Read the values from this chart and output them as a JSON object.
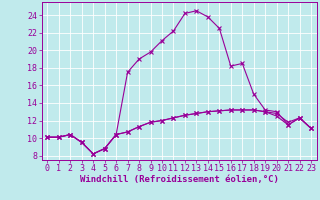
{
  "xlabel": "Windchill (Refroidissement éolien,°C)",
  "background_color": "#c0eaec",
  "line_color": "#990099",
  "xlim": [
    -0.5,
    23.5
  ],
  "ylim": [
    7.5,
    25.5
  ],
  "xticks": [
    0,
    1,
    2,
    3,
    4,
    5,
    6,
    7,
    8,
    9,
    10,
    11,
    12,
    13,
    14,
    15,
    16,
    17,
    18,
    19,
    20,
    21,
    22,
    23
  ],
  "yticks": [
    8,
    10,
    12,
    14,
    16,
    18,
    20,
    22,
    24
  ],
  "line1_x": [
    0,
    1,
    2,
    3,
    4,
    5,
    6,
    7,
    8,
    9,
    10,
    11,
    12,
    13,
    14,
    15,
    16,
    17,
    18,
    19,
    20,
    21,
    22,
    23
  ],
  "line1_y": [
    10.1,
    10.1,
    10.4,
    9.5,
    8.2,
    8.8,
    10.4,
    10.7,
    11.3,
    11.8,
    12.0,
    12.3,
    12.6,
    12.8,
    13.0,
    13.1,
    13.2,
    13.2,
    13.2,
    13.0,
    12.8,
    11.8,
    12.3,
    11.1
  ],
  "line2_x": [
    0,
    1,
    2,
    3,
    4,
    5,
    6,
    7,
    8,
    9,
    10,
    11,
    12,
    13,
    14,
    15,
    16,
    17,
    18,
    19,
    20,
    21,
    22,
    23
  ],
  "line2_y": [
    10.1,
    10.1,
    10.4,
    9.5,
    8.2,
    8.8,
    10.4,
    17.5,
    19.0,
    19.8,
    21.1,
    22.2,
    24.2,
    24.5,
    23.8,
    22.5,
    18.2,
    18.5,
    15.0,
    13.2,
    13.0,
    11.5,
    12.3,
    11.1
  ],
  "line3_x": [
    0,
    1,
    2,
    3,
    4,
    5,
    6,
    7,
    8,
    9,
    10,
    11,
    12,
    13,
    14,
    15,
    16,
    17,
    18,
    19,
    20,
    21,
    22,
    23
  ],
  "line3_y": [
    10.1,
    10.1,
    10.4,
    9.5,
    8.2,
    8.8,
    10.4,
    10.7,
    11.3,
    11.8,
    12.0,
    12.3,
    12.6,
    12.8,
    13.0,
    13.1,
    13.2,
    13.2,
    13.2,
    13.0,
    12.5,
    11.5,
    12.3,
    11.1
  ],
  "grid_color": "#ffffff",
  "font_color": "#990099",
  "xlabel_fontsize": 6.5,
  "tick_fontsize": 6.0
}
